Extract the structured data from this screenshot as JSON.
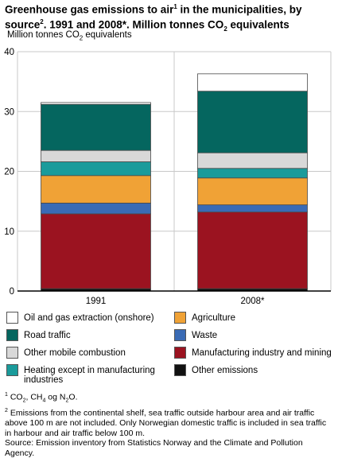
{
  "title_parts": {
    "t1": "Greenhouse gas emissions to air",
    "s1": "1",
    "t2": " in the municipalities, by source",
    "s2": "2",
    "t3": ". 1991 and 2008*. Million tonnes CO",
    "sub": "2",
    "t4": " equivalents"
  },
  "unit_label": {
    "t1": "Million tonnes CO",
    "sub": "2",
    "t2": " equivalents"
  },
  "chart_data": {
    "type": "bar",
    "stacked": true,
    "categories": [
      "1991",
      "2008*"
    ],
    "ylim": [
      0,
      40
    ],
    "yticks": [
      0,
      10,
      20,
      30,
      40
    ],
    "grid": true,
    "legend_position": "bottom",
    "series": [
      {
        "name": "Other emissions",
        "color": "#111111",
        "values": [
          0.4,
          0.4
        ]
      },
      {
        "name": "Manufacturing industry and mining",
        "color": "#9b1320",
        "values": [
          12.5,
          12.8
        ]
      },
      {
        "name": "Waste",
        "color": "#3a6bb5",
        "values": [
          1.8,
          1.2
        ]
      },
      {
        "name": "Agriculture",
        "color": "#f0a236",
        "values": [
          4.6,
          4.5
        ]
      },
      {
        "name": "Heating except in manufacturing industries",
        "color": "#1a9b9b",
        "values": [
          2.3,
          1.6
        ]
      },
      {
        "name": "Other mobile combustion",
        "color": "#d8d8d8",
        "values": [
          1.9,
          2.6
        ]
      },
      {
        "name": "Road traffic",
        "color": "#05665f",
        "values": [
          7.7,
          10.3
        ]
      },
      {
        "name": "Oil and gas extraction (onshore)",
        "color": "#ffffff",
        "values": [
          0.3,
          2.9
        ]
      }
    ]
  },
  "legend_order": [
    7,
    3,
    6,
    2,
    5,
    1,
    4,
    0
  ],
  "footnotes": {
    "n1": {
      "mark": "1",
      "a": " CO",
      "b": "2",
      "c": ", CH",
      "d": "4",
      "e": " og N",
      "f": "2",
      "g": "O."
    },
    "n2": {
      "mark": "2",
      "text": " Emissions from the continental shelf, sea traffic outside harbour area and air traffic above 100 m are not included. Only Norwegian domestic traffic is included in sea traffic in harbour and air traffic below 100 m."
    },
    "source": "Source: Emission inventory from Statistics Norway and the Climate and Pollution Agency."
  }
}
